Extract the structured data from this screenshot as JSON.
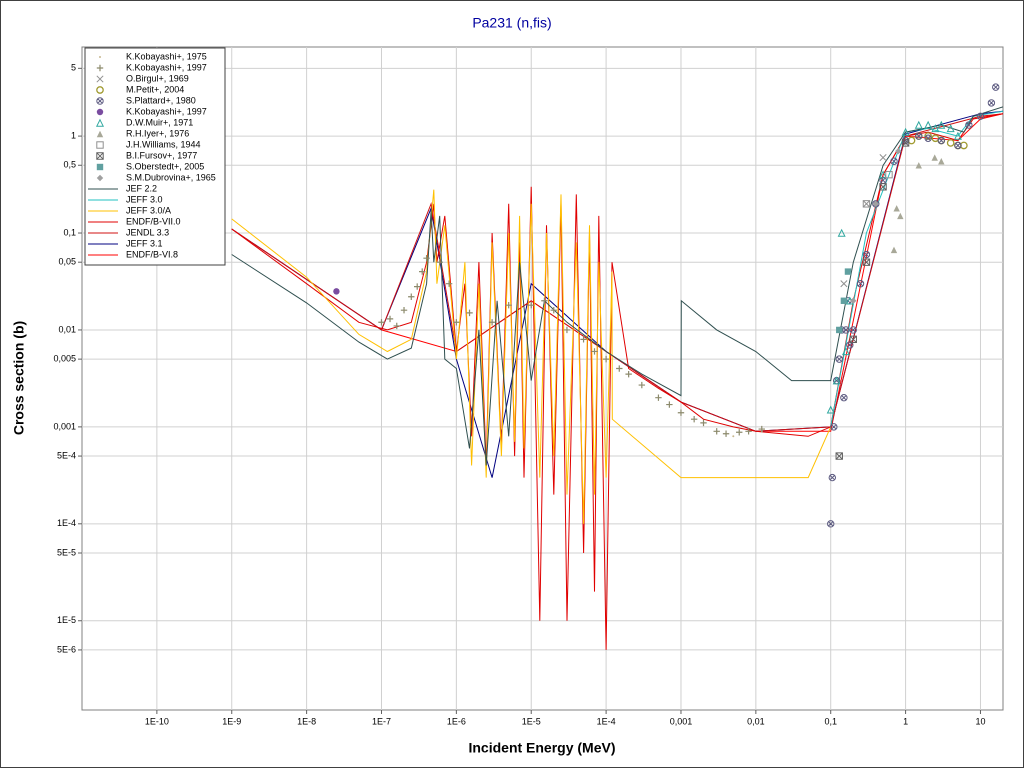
{
  "chart_data": {
    "type": "line",
    "title": "Pa231 (n,fis)",
    "x_label": "Incident Energy (MeV)",
    "y_label": "Cross section (b)",
    "log_x": true,
    "log_y": true,
    "grid": true,
    "legend": "upper left",
    "xlim": [
      1e-11,
      20
    ],
    "ylim": [
      1.2e-06,
      8.3
    ],
    "xticks": [
      {
        "value": 1e-10,
        "label": "1E-10"
      },
      {
        "value": 1e-09,
        "label": "1E-9"
      },
      {
        "value": 1e-08,
        "label": "1E-8"
      },
      {
        "value": 1e-07,
        "label": "1E-7"
      },
      {
        "value": 1e-06,
        "label": "1E-6"
      },
      {
        "value": 1e-05,
        "label": "1E-5"
      },
      {
        "value": 0.0001,
        "label": "1E-4"
      },
      {
        "value": 0.001,
        "label": "0,001"
      },
      {
        "value": 0.01,
        "label": "0,01"
      },
      {
        "value": 0.1,
        "label": "0,1"
      },
      1,
      10
    ],
    "yticks": [
      5,
      1,
      {
        "value": 0.5,
        "label": "0,5"
      },
      {
        "value": 0.1,
        "label": "0,1"
      },
      {
        "value": 0.05,
        "label": "0,05"
      },
      {
        "value": 0.01,
        "label": "0,01"
      },
      {
        "value": 0.005,
        "label": "0,005"
      },
      {
        "value": 0.001,
        "label": "0,001"
      },
      {
        "value": 0.0005,
        "label": "5E-4"
      },
      {
        "value": 0.0001,
        "label": "1E-4"
      },
      {
        "value": 5e-05,
        "label": "5E-5"
      },
      {
        "value": 1e-05,
        "label": "1E-5"
      },
      {
        "value": 5e-06,
        "label": "5E-6"
      }
    ],
    "series": [
      {
        "name": "K.Kobayashi+, 1975",
        "type": "scatter",
        "marker": "point",
        "color": "#c8b890",
        "x": [
          0.003,
          0.005,
          0.008,
          0.012
        ],
        "values": [
          0.0009,
          0.0008,
          0.0009,
          0.0009
        ]
      },
      {
        "name": "K.Kobayashi+, 1997",
        "type": "scatter",
        "marker": "plus",
        "color": "#8c8a6c",
        "x": [
          1e-07,
          1.3e-07,
          1.6e-07,
          2e-07,
          2.5e-07,
          3e-07,
          3.5e-07,
          4e-07,
          6e-07,
          8e-07,
          1e-06,
          1.5e-06,
          3e-06,
          5e-06,
          1e-05,
          1.5e-05,
          2e-05,
          3e-05,
          5e-05,
          7e-05,
          0.0001,
          0.00015,
          0.0002,
          0.0003,
          0.0005,
          0.0007,
          0.001,
          0.0015,
          0.002,
          0.003,
          0.004,
          0.006,
          0.008,
          0.012
        ],
        "values": [
          0.012,
          0.013,
          0.011,
          0.016,
          0.022,
          0.028,
          0.04,
          0.055,
          0.05,
          0.03,
          0.012,
          0.015,
          0.012,
          0.018,
          0.018,
          0.02,
          0.016,
          0.01,
          0.008,
          0.006,
          0.005,
          0.004,
          0.0035,
          0.0027,
          0.002,
          0.0017,
          0.0014,
          0.0012,
          0.0011,
          0.0009,
          0.00085,
          0.00088,
          0.0009,
          0.00095
        ]
      },
      {
        "name": "O.Birgul+, 1969",
        "type": "scatter",
        "marker": "x",
        "color": "#909090",
        "x": [
          0.15,
          0.3,
          0.5
        ],
        "values": [
          0.03,
          0.2,
          0.6
        ]
      },
      {
        "name": "M.Petit+, 2004",
        "type": "scatter",
        "marker": "circle",
        "color": "#a09a30",
        "x": [
          1.2,
          1.5,
          2,
          2.5,
          3,
          4,
          5,
          6
        ],
        "values": [
          0.9,
          1.0,
          1.0,
          0.95,
          0.9,
          0.85,
          0.8,
          0.8
        ]
      },
      {
        "name": "S.Plattard+, 1980",
        "type": "scatter",
        "marker": "circle-x",
        "color": "#5c5a80",
        "x": [
          0.1,
          0.105,
          0.11,
          0.12,
          0.13,
          0.14,
          0.15,
          0.16,
          0.17,
          0.18,
          0.2,
          0.25,
          0.3,
          0.4,
          0.5,
          0.7,
          1,
          1.5,
          2,
          3,
          5,
          7,
          10,
          14,
          16
        ],
        "values": [
          0.0001,
          0.0003,
          0.001,
          0.003,
          0.005,
          0.01,
          0.002,
          0.01,
          0.02,
          0.007,
          0.01,
          0.03,
          0.06,
          0.2,
          0.35,
          0.55,
          0.9,
          1.0,
          0.95,
          0.9,
          0.8,
          1.3,
          1.6,
          2.2,
          3.2
        ]
      },
      {
        "name": "K.Kobayashi+, 1997",
        "type": "scatter",
        "marker": "dot",
        "color": "#7a4ca0",
        "x": [
          2.5e-08
        ],
        "values": [
          0.025
        ]
      },
      {
        "name": "D.W.Muir+, 1971",
        "type": "scatter",
        "marker": "triangle",
        "color": "#30a8a0",
        "x": [
          0.1,
          0.12,
          0.14,
          0.16,
          0.18,
          0.5,
          1,
          1.5,
          2,
          2.5,
          3,
          4,
          5
        ],
        "values": [
          0.0015,
          0.003,
          0.1,
          0.006,
          0.02,
          0.4,
          1.1,
          1.3,
          1.3,
          1.2,
          1.3,
          1.2,
          1.0
        ]
      },
      {
        "name": "R.H.Iyer+, 1976",
        "type": "scatter",
        "marker": "triangle-filled",
        "color": "#a8a898",
        "x": [
          0.7,
          0.76,
          0.85,
          1.5,
          2.45,
          3
        ],
        "values": [
          0.067,
          0.18,
          0.15,
          0.5,
          0.6,
          0.55
        ]
      },
      {
        "name": "J.H.Williams, 1944",
        "type": "scatter",
        "marker": "square",
        "color": "#909090",
        "x": [
          0.3,
          0.6
        ],
        "values": [
          0.2,
          0.4
        ]
      },
      {
        "name": "B.I.Fursov+, 1977",
        "type": "scatter",
        "marker": "square-x",
        "color": "#606060",
        "x": [
          0.13,
          0.2,
          0.3,
          0.5,
          1
        ],
        "values": [
          0.0005,
          0.008,
          0.05,
          0.3,
          0.85
        ]
      },
      {
        "name": "S.Oberstedt+, 2005",
        "type": "scatter",
        "marker": "square-filled",
        "color": "#60a0a0",
        "x": [
          0.13,
          0.15,
          0.17
        ],
        "values": [
          0.01,
          0.02,
          0.04
        ]
      },
      {
        "name": "S.M.Dubrovina+, 1965",
        "type": "scatter",
        "marker": "diamond",
        "color": "#a0a0a0",
        "x": [
          0.2,
          0.4,
          0.8
        ],
        "values": [
          0.02,
          0.2,
          0.7
        ]
      },
      {
        "name": "JEF 2.2",
        "type": "line",
        "color": "#2f4f4f",
        "x": [
          1e-09,
          1e-08,
          5e-08,
          1.2e-07,
          2.5e-07,
          4e-07,
          4.6e-07,
          5e-07,
          6e-07,
          7e-07,
          1e-06,
          1.5e-06,
          2e-06,
          2.5e-06,
          3.5e-06,
          5e-06,
          7e-06,
          1e-05,
          1.5e-05,
          3e-05,
          0.0001,
          0.0003,
          0.001,
          0.00101,
          0.003,
          0.01,
          0.03,
          0.1,
          0.2,
          0.5,
          1,
          3,
          6,
          8,
          20
        ],
        "values": [
          0.06,
          0.019,
          0.0075,
          0.005,
          0.0065,
          0.03,
          0.17,
          0.05,
          0.15,
          0.005,
          0.004,
          0.0006,
          0.01,
          0.0004,
          0.02,
          0.0008,
          0.05,
          0.003,
          0.02,
          0.012,
          0.006,
          0.0035,
          0.0021,
          0.02,
          0.01,
          0.006,
          0.003,
          0.003,
          0.05,
          0.5,
          1.1,
          1.3,
          1.1,
          1.6,
          2.0
        ]
      },
      {
        "name": "JEFF 3.0",
        "type": "line",
        "color": "#20c0c0",
        "x": [
          0.1,
          0.3,
          1,
          2,
          5,
          8,
          20
        ],
        "values": [
          0.001,
          0.1,
          1.1,
          1.2,
          1.0,
          1.6,
          1.8
        ]
      },
      {
        "name": "JEFF 3.0/A",
        "type": "line",
        "color": "#ffc000",
        "x": [
          1e-09,
          1e-08,
          5e-08,
          1.2e-07,
          2.5e-07,
          4e-07,
          5e-07,
          5.5e-07,
          7e-07,
          1e-06,
          1.3e-06,
          1.6e-06,
          2e-06,
          2.5e-06,
          3e-06,
          4e-06,
          5e-06,
          6e-06,
          7e-06,
          8e-06,
          1e-05,
          1.3e-05,
          1.6e-05,
          2e-05,
          2.5e-05,
          3e-05,
          4e-05,
          5e-05,
          6e-05,
          7e-05,
          8e-05,
          0.0001,
          0.00012,
          0.000121,
          0.001,
          0.05,
          0.1
        ],
        "values": [
          0.14,
          0.035,
          0.009,
          0.006,
          0.008,
          0.04,
          0.28,
          0.03,
          0.12,
          0.005,
          0.05,
          0.0004,
          0.03,
          0.0003,
          0.08,
          0.0005,
          0.1,
          0.0007,
          0.15,
          0.0006,
          0.2,
          0.0003,
          0.1,
          0.0005,
          0.25,
          0.0002,
          0.08,
          0.0001,
          0.12,
          0.0002,
          0.05,
          0.0003,
          0.04,
          0.0012,
          0.0003,
          0.0003,
          0.001
        ]
      },
      {
        "name": "ENDF/B-VII.0",
        "type": "line",
        "color": "#e00000",
        "x": [
          1e-09,
          1e-08,
          5e-08,
          1.2e-07,
          2.5e-07,
          4e-07,
          5e-07,
          5.5e-07,
          7e-07,
          1e-06,
          1.3e-06,
          1.6e-06,
          2e-06,
          2.5e-06,
          3e-06,
          4e-06,
          5e-06,
          6e-06,
          7e-06,
          8e-06,
          1e-05,
          1.3e-05,
          1.6e-05,
          2e-05,
          2.5e-05,
          3e-05,
          4e-05,
          5e-05,
          6e-05,
          7e-05,
          8e-05,
          0.0001,
          0.00012,
          0.0002,
          0.0005,
          0.001,
          0.002,
          0.005,
          0.01,
          0.05,
          0.1,
          0.2,
          0.5,
          1,
          2,
          5,
          8,
          20
        ],
        "values": [
          0.11,
          0.03,
          0.012,
          0.01,
          0.012,
          0.05,
          0.2,
          0.05,
          0.15,
          0.006,
          0.03,
          0.0008,
          0.05,
          0.0004,
          0.1,
          0.0006,
          0.2,
          0.0005,
          0.08,
          0.0003,
          0.3,
          1e-05,
          0.12,
          0.0002,
          0.2,
          1e-05,
          0.25,
          5e-05,
          0.1,
          2e-05,
          0.15,
          5e-06,
          0.05,
          0.004,
          0.0025,
          0.0018,
          0.0012,
          0.001,
          0.0009,
          0.0008,
          0.001,
          0.02,
          0.4,
          1.0,
          1.1,
          0.9,
          1.5,
          1.7
        ]
      },
      {
        "name": "JENDL 3.3",
        "type": "line",
        "color": "#d01010",
        "x": [
          1e-09,
          1e-07,
          4.6e-07,
          1e-06,
          1e-05,
          0.0001,
          0.001,
          0.01,
          0.1,
          1,
          10,
          20
        ],
        "values": [
          0.11,
          0.01,
          0.2,
          0.006,
          0.02,
          0.006,
          0.0018,
          0.0009,
          0.001,
          1,
          1.6,
          1.7
        ]
      },
      {
        "name": "JEFF 3.1",
        "type": "line",
        "color": "#000080",
        "x": [
          1e-09,
          1e-07,
          4.6e-07,
          1e-06,
          3e-06,
          1e-05,
          0.0001,
          0.001,
          0.01,
          0.1,
          1,
          10,
          20
        ],
        "values": [
          0.11,
          0.01,
          0.18,
          0.005,
          0.0003,
          0.03,
          0.006,
          0.0018,
          0.0009,
          0.001,
          1.05,
          1.7,
          1.8
        ]
      },
      {
        "name": "ENDF/B-VI.8",
        "type": "line",
        "color": "#ff0000",
        "x": [
          1e-09,
          1e-07,
          1e-06,
          1e-05,
          0.0001,
          0.001,
          0.01,
          0.1,
          0.5,
          1,
          5,
          10,
          20
        ],
        "values": [
          0.11,
          0.01,
          0.006,
          0.02,
          0.006,
          0.0018,
          0.0009,
          0.0009,
          0.4,
          1,
          0.9,
          1.5,
          1.7
        ]
      }
    ]
  }
}
